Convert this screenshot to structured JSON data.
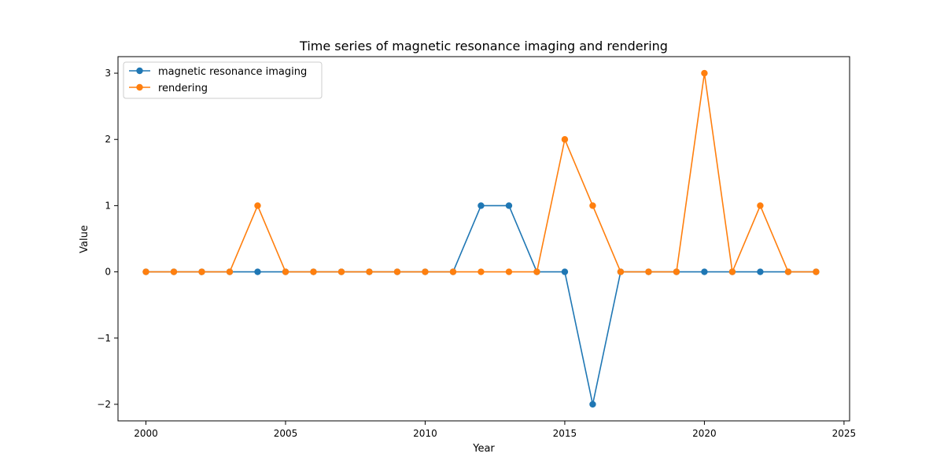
{
  "chart_data": {
    "type": "line",
    "title": "Time series of magnetic resonance imaging and rendering",
    "xlabel": "Year",
    "ylabel": "Value",
    "xlim": [
      1999.0,
      2025.2
    ],
    "ylim": [
      -2.25,
      3.25
    ],
    "xticks": [
      2000,
      2005,
      2010,
      2015,
      2020,
      2025
    ],
    "yticks": [
      -2,
      -1,
      0,
      1,
      2,
      3
    ],
    "ytick_labels": [
      "−2",
      "−1",
      "0",
      "1",
      "2",
      "3"
    ],
    "legend_position": "top-left",
    "x": [
      2000,
      2001,
      2002,
      2003,
      2004,
      2005,
      2006,
      2007,
      2008,
      2009,
      2010,
      2011,
      2012,
      2013,
      2014,
      2015,
      2016,
      2017,
      2018,
      2019,
      2020,
      2021,
      2022,
      2023,
      2024
    ],
    "series": [
      {
        "name": "magnetic resonance imaging",
        "color": "#1f77b4",
        "values": [
          0,
          0,
          0,
          0,
          0,
          0,
          0,
          0,
          0,
          0,
          0,
          0,
          1,
          1,
          0,
          0,
          -2,
          0,
          0,
          0,
          0,
          0,
          0,
          0,
          0
        ]
      },
      {
        "name": "rendering",
        "color": "#ff7f0e",
        "values": [
          0,
          0,
          0,
          0,
          1,
          0,
          0,
          0,
          0,
          0,
          0,
          0,
          0,
          0,
          0,
          2,
          1,
          0,
          0,
          0,
          3,
          0,
          1,
          0,
          0
        ]
      }
    ]
  }
}
